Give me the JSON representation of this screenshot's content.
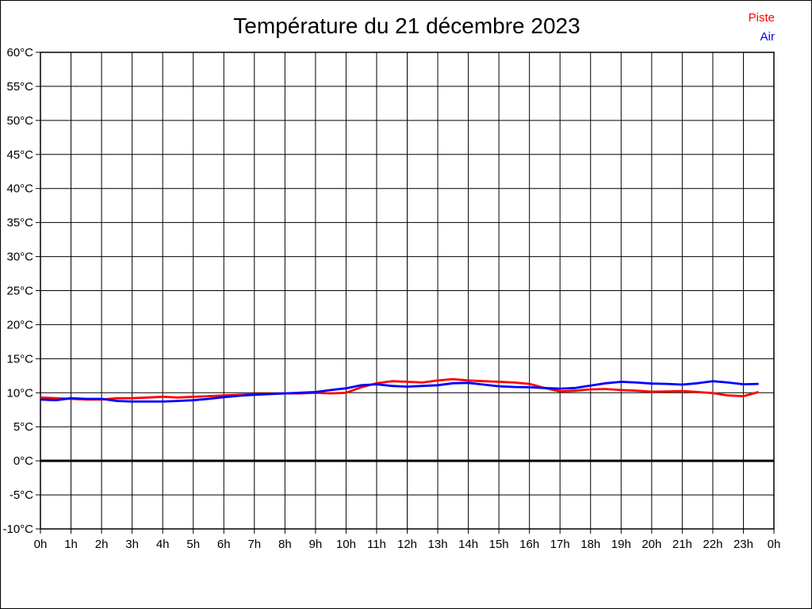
{
  "title": "Température du 21 décembre 2023",
  "legend": {
    "items": [
      {
        "label": "Piste",
        "color": "#ff0000"
      },
      {
        "label": "Air",
        "color": "#0000ff"
      }
    ]
  },
  "colors": {
    "grid": "#000000",
    "axis": "#000000",
    "zero_line": "#000000",
    "background": "#ffffff"
  },
  "chart_data": {
    "type": "line",
    "title": "Température du 21 décembre 2023",
    "xlabel": "",
    "ylabel": "",
    "xlim": [
      0,
      24
    ],
    "ylim": [
      -10,
      60
    ],
    "grid": true,
    "zero_line_value": 0,
    "legend_position": "top-right",
    "x_ticks": [
      {
        "value": 0,
        "label": "0h"
      },
      {
        "value": 1,
        "label": "1h"
      },
      {
        "value": 2,
        "label": "2h"
      },
      {
        "value": 3,
        "label": "3h"
      },
      {
        "value": 4,
        "label": "4h"
      },
      {
        "value": 5,
        "label": "5h"
      },
      {
        "value": 6,
        "label": "6h"
      },
      {
        "value": 7,
        "label": "7h"
      },
      {
        "value": 8,
        "label": "8h"
      },
      {
        "value": 9,
        "label": "9h"
      },
      {
        "value": 10,
        "label": "10h"
      },
      {
        "value": 11,
        "label": "11h"
      },
      {
        "value": 12,
        "label": "12h"
      },
      {
        "value": 13,
        "label": "13h"
      },
      {
        "value": 14,
        "label": "14h"
      },
      {
        "value": 15,
        "label": "15h"
      },
      {
        "value": 16,
        "label": "16h"
      },
      {
        "value": 17,
        "label": "17h"
      },
      {
        "value": 18,
        "label": "18h"
      },
      {
        "value": 19,
        "label": "19h"
      },
      {
        "value": 20,
        "label": "20h"
      },
      {
        "value": 21,
        "label": "21h"
      },
      {
        "value": 22,
        "label": "22h"
      },
      {
        "value": 23,
        "label": "23h"
      },
      {
        "value": 24,
        "label": "0h"
      }
    ],
    "y_ticks": [
      {
        "value": 60,
        "label": "60°C"
      },
      {
        "value": 55,
        "label": "55°C"
      },
      {
        "value": 50,
        "label": "50°C"
      },
      {
        "value": 45,
        "label": "45°C"
      },
      {
        "value": 40,
        "label": "40°C"
      },
      {
        "value": 35,
        "label": "35°C"
      },
      {
        "value": 30,
        "label": "30°C"
      },
      {
        "value": 25,
        "label": "25°C"
      },
      {
        "value": 20,
        "label": "20°C"
      },
      {
        "value": 15,
        "label": "15°C"
      },
      {
        "value": 10,
        "label": "10°C"
      },
      {
        "value": 5,
        "label": "5°C"
      },
      {
        "value": 0,
        "label": "0°C"
      },
      {
        "value": -5,
        "label": "-5°C"
      },
      {
        "value": -10,
        "label": "-10°C"
      }
    ],
    "x": [
      0,
      0.5,
      1,
      1.5,
      2,
      2.5,
      3,
      3.5,
      4,
      4.5,
      5,
      5.5,
      6,
      6.5,
      7,
      7.5,
      8,
      8.5,
      9,
      9.5,
      10,
      10.5,
      11,
      11.5,
      12,
      12.5,
      13,
      13.5,
      14,
      14.5,
      15,
      15.5,
      16,
      16.5,
      17,
      17.5,
      18,
      18.5,
      19,
      19.5,
      20,
      20.5,
      21,
      21.5,
      22,
      22.5,
      23,
      23.5
    ],
    "series": [
      {
        "name": "Piste",
        "color": "#ff0000",
        "values": [
          9.3,
          9.2,
          9.1,
          9.0,
          9.0,
          9.2,
          9.2,
          9.3,
          9.4,
          9.3,
          9.4,
          9.5,
          9.6,
          9.7,
          9.8,
          9.85,
          9.9,
          9.9,
          10.0,
          9.9,
          10.0,
          10.8,
          11.4,
          11.7,
          11.6,
          11.5,
          11.8,
          12.0,
          11.8,
          11.7,
          11.6,
          11.5,
          11.3,
          10.7,
          10.2,
          10.3,
          10.5,
          10.55,
          10.4,
          10.3,
          10.15,
          10.2,
          10.25,
          10.1,
          9.95,
          9.6,
          9.5,
          10.1
        ]
      },
      {
        "name": "Air",
        "color": "#0000ff",
        "values": [
          9.0,
          8.9,
          9.2,
          9.1,
          9.1,
          8.8,
          8.7,
          8.7,
          8.7,
          8.8,
          8.9,
          9.1,
          9.35,
          9.55,
          9.7,
          9.8,
          9.9,
          10.0,
          10.1,
          10.4,
          10.65,
          11.1,
          11.25,
          11.0,
          10.9,
          11.0,
          11.1,
          11.4,
          11.45,
          11.2,
          10.95,
          10.85,
          10.8,
          10.7,
          10.6,
          10.7,
          11.05,
          11.4,
          11.6,
          11.5,
          11.35,
          11.3,
          11.2,
          11.4,
          11.7,
          11.5,
          11.25,
          11.3
        ]
      }
    ]
  }
}
